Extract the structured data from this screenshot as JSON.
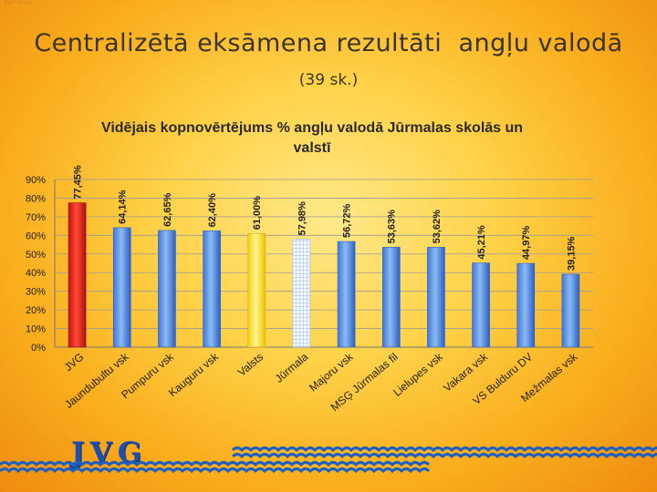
{
  "slide": {
    "title": "Centralizētā eksāmena rezultāti  angļu valodā",
    "subtitle": "(39 sk.)",
    "watermark": "Sight design",
    "logo_text": "JVG"
  },
  "chart_data": {
    "type": "bar",
    "title": "Vidējais kopnovērtējums % angļu valodā Jūrmalas skolās un valstī",
    "title_lines": [
      "Vidējais kopnovērtējums % angļu valodā Jūrmalas skolās un",
      "valstī"
    ],
    "categories": [
      "JVG",
      "Jaundubultu vsk",
      "Pumpuru vsk",
      "Kauguru vsk",
      "Valsts",
      "Jūrmala",
      "Majoru vsk",
      "MSĢ Jūrmalas fil",
      "Lielupes vsk",
      "Vakara vsk",
      "VS Bulduru DV",
      "Mežmalas vsk"
    ],
    "values": [
      77.45,
      64.14,
      62.65,
      62.4,
      61.0,
      57.98,
      56.72,
      53.63,
      53.62,
      45.21,
      44.97,
      39.15
    ],
    "data_labels": [
      "77,45%",
      "64,14%",
      "62,65%",
      "62,40%",
      "61,00%",
      "57,98%",
      "56,72%",
      "53,63%",
      "53,62%",
      "45,21%",
      "44,97%",
      "39,15%"
    ],
    "bar_styles": [
      "red",
      "blue",
      "blue",
      "blue",
      "yellow",
      "hatched",
      "blue",
      "blue",
      "blue",
      "blue",
      "blue",
      "blue"
    ],
    "y_ticks": [
      "0%",
      "10%",
      "20%",
      "30%",
      "40%",
      "50%",
      "60%",
      "70%",
      "80%",
      "90%"
    ],
    "ylim": [
      0,
      90
    ],
    "grid": true,
    "xlabel": "",
    "ylabel": ""
  },
  "colors": {
    "blue_light": "#7fb0f2",
    "blue_dark": "#2c64c8",
    "red_light": "#ff4a3a",
    "red_dark": "#b40f0a",
    "yellow_light": "#fff48a",
    "yellow_dark": "#f4c600",
    "gridline": "#9a9a9a",
    "label_text": "#222222"
  }
}
